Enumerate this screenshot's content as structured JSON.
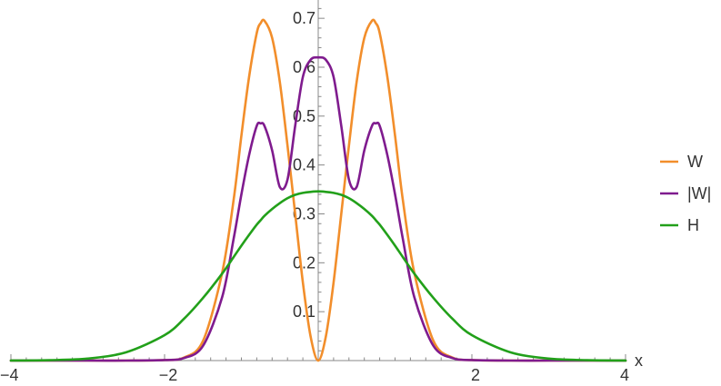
{
  "chart_data": {
    "type": "line",
    "xlabel": "x",
    "ylabel": "",
    "xlim": [
      -4,
      4
    ],
    "ylim": [
      0,
      0.73
    ],
    "x_ticks": [
      -4,
      -2,
      2,
      4
    ],
    "x_tick_labels": [
      "−4",
      "−2",
      "2",
      "4"
    ],
    "y_ticks": [
      0.1,
      0.2,
      0.3,
      0.4,
      0.5,
      0.6,
      0.7
    ],
    "y_tick_labels": [
      "0.1",
      "0.2",
      "0.3",
      "0.4",
      "0.5",
      "0.6",
      "0.7"
    ],
    "grid": false,
    "legend_position": "right",
    "x": [
      -4,
      -3.5,
      -3,
      -2.5,
      -2,
      -1.75,
      -1.5,
      -1.25,
      -1.1,
      -1,
      -0.9,
      -0.8,
      -0.75,
      -0.7,
      -0.6,
      -0.5,
      -0.4,
      -0.3,
      -0.2,
      -0.1,
      0,
      0.1,
      0.2,
      0.3,
      0.4,
      0.5,
      0.6,
      0.7,
      0.75,
      0.8,
      0.9,
      1,
      1.1,
      1.25,
      1.5,
      1.75,
      2,
      2.5,
      3,
      3.5,
      4
    ],
    "series": [
      {
        "name": "W",
        "color": "#f28e2b",
        "values": [
          0,
          0,
          0,
          0,
          0.001,
          0.006,
          0.04,
          0.18,
          0.33,
          0.46,
          0.58,
          0.67,
          0.69,
          0.695,
          0.66,
          0.57,
          0.44,
          0.3,
          0.16,
          0.05,
          0,
          0.05,
          0.16,
          0.3,
          0.44,
          0.57,
          0.66,
          0.695,
          0.69,
          0.67,
          0.58,
          0.46,
          0.33,
          0.18,
          0.04,
          0.006,
          0.001,
          0,
          0,
          0,
          0
        ]
      },
      {
        "name": "|W|",
        "color": "#7f1b8e",
        "values": [
          0,
          0,
          0,
          0,
          0.001,
          0.005,
          0.03,
          0.13,
          0.25,
          0.34,
          0.42,
          0.48,
          0.485,
          0.48,
          0.43,
          0.355,
          0.37,
          0.48,
          0.58,
          0.615,
          0.62,
          0.615,
          0.58,
          0.48,
          0.37,
          0.355,
          0.43,
          0.48,
          0.485,
          0.48,
          0.42,
          0.34,
          0.25,
          0.13,
          0.03,
          0.005,
          0.001,
          0,
          0,
          0,
          0
        ]
      },
      {
        "name": "H",
        "color": "#22a01a",
        "values": [
          0.0001,
          0.0008,
          0.004,
          0.017,
          0.052,
          0.085,
          0.128,
          0.178,
          0.212,
          0.235,
          0.257,
          0.278,
          0.287,
          0.296,
          0.31,
          0.322,
          0.332,
          0.339,
          0.343,
          0.345,
          0.346,
          0.345,
          0.343,
          0.339,
          0.332,
          0.322,
          0.31,
          0.296,
          0.287,
          0.278,
          0.257,
          0.235,
          0.212,
          0.178,
          0.128,
          0.085,
          0.052,
          0.017,
          0.004,
          0.0008,
          0.0001
        ]
      }
    ]
  }
}
